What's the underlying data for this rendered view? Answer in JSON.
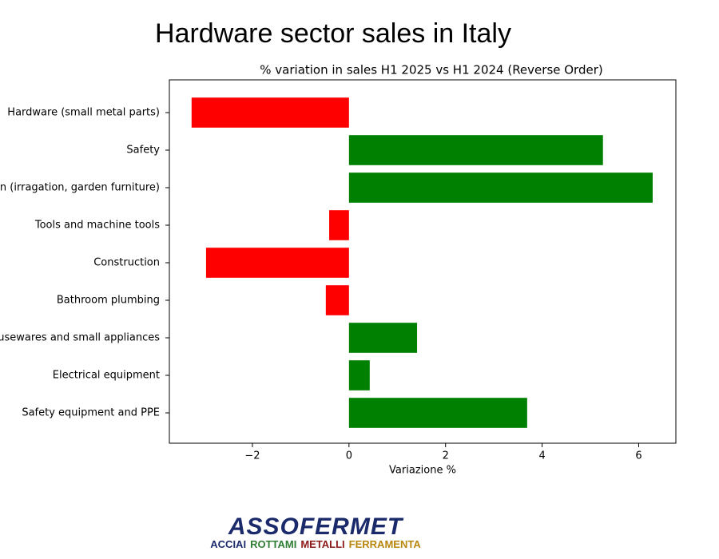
{
  "chart_data": {
    "type": "barh",
    "title": "Hardware sector sales in Italy",
    "subtitle": "% variation in sales H1 2025 vs H1 2024 (Reverse Order)",
    "x_label": "Variazione %",
    "categories": [
      "Hardware (small metal parts)",
      "Safety",
      "Garden (irragation, garden furniture)",
      "Tools and machine tools",
      "Construction",
      "Bathroom plumbing",
      "Housewares and small appliances",
      "Electrical equipment",
      "Safety equipment and PPE"
    ],
    "values": [
      -3.26,
      5.26,
      6.29,
      -0.41,
      -2.96,
      -0.48,
      1.41,
      0.43,
      3.69
    ],
    "colors": [
      "#ff0000",
      "#008000",
      "#008000",
      "#ff0000",
      "#ff0000",
      "#ff0000",
      "#008000",
      "#008000",
      "#008000"
    ],
    "xlim": [
      -3.72,
      6.77
    ],
    "xticks": [
      {
        "value": -2,
        "label": "−2"
      },
      0,
      2,
      4,
      6
    ],
    "grid": false
  },
  "logo": {
    "name": "ASSOFERMET",
    "tagline": [
      {
        "text": "ACCIAI",
        "color": "#1b2a6b"
      },
      {
        "text": "ROTTAMI",
        "color": "#2e7d32"
      },
      {
        "text": "METALLI",
        "color": "#8b1a1a"
      },
      {
        "text": "FERRAMENTA",
        "color": "#b8860b"
      }
    ]
  }
}
